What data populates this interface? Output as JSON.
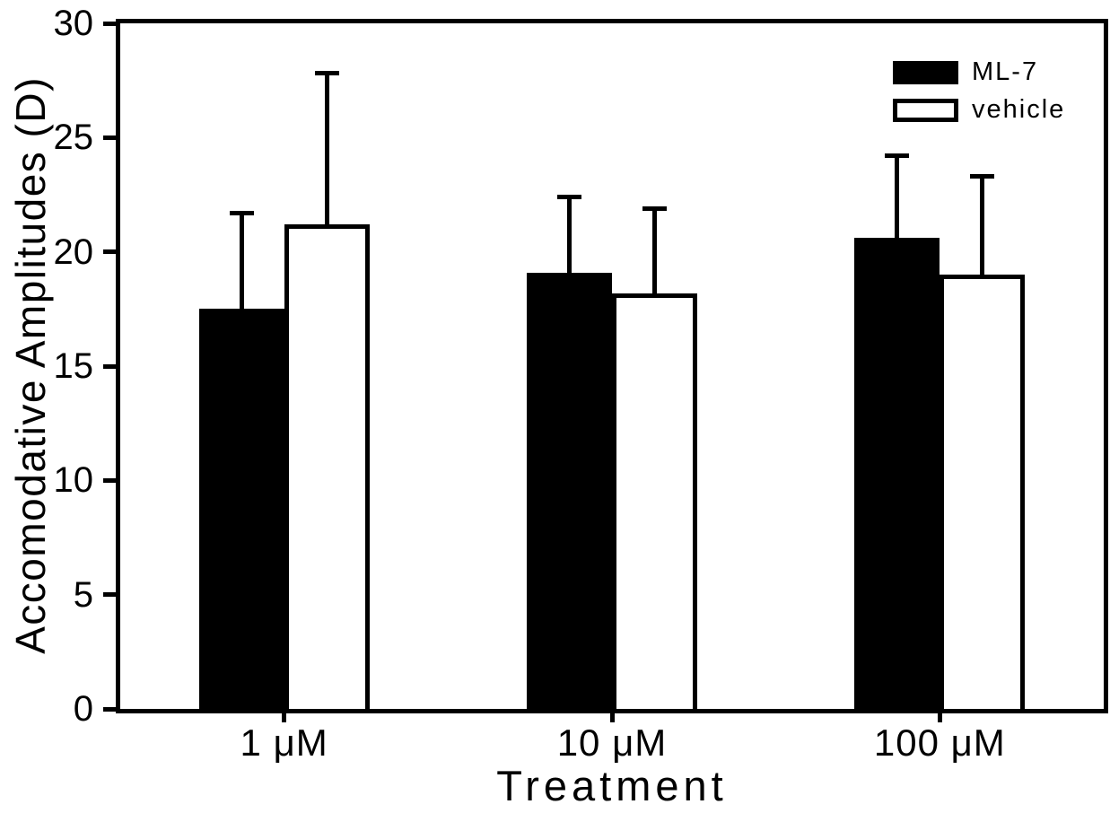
{
  "chart_data": {
    "type": "bar",
    "title": "",
    "xlabel": "Treatment",
    "ylabel": "Accomodative Amplitudes (D)",
    "categories": [
      "1 μM",
      "10 μM",
      "100 μM"
    ],
    "series": [
      {
        "name": "ML-7",
        "fill": "#000000",
        "values": [
          17.5,
          19.1,
          20.6
        ],
        "errors": [
          4.3,
          3.4,
          3.7
        ]
      },
      {
        "name": "vehicle",
        "fill": "#ffffff",
        "values": [
          21.2,
          18.2,
          19.0
        ],
        "errors": [
          6.7,
          3.8,
          4.4
        ]
      }
    ],
    "ylim": [
      0,
      30
    ],
    "yticks": [
      0,
      5,
      10,
      15,
      20,
      25,
      30
    ],
    "grid": false,
    "error_bars": "upper-only",
    "legend_position": "top-right",
    "colors": {
      "foreground": "#000000",
      "background": "#ffffff"
    }
  }
}
